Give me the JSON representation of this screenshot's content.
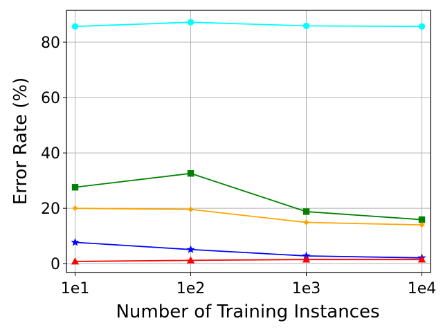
{
  "chart_data": {
    "type": "line",
    "x_scale": "log",
    "x": [
      10,
      100,
      1000,
      10000
    ],
    "x_tick_labels": [
      "1e1",
      "1e2",
      "1e3",
      "1e4"
    ],
    "y_ticks": [
      0,
      20,
      40,
      60,
      80
    ],
    "y_tick_labels": [
      "0",
      "20",
      "40",
      "60",
      "80"
    ],
    "xlabel": "Number of Training Instances",
    "ylabel": "Error Rate (%)",
    "ylim": [
      -3.2,
      91.5
    ],
    "grid": true,
    "legend": "none",
    "series": [
      {
        "color": "#00ffff",
        "marker": "circle",
        "values": [
          85.7,
          87.2,
          85.9,
          85.7
        ]
      },
      {
        "color": "#008000",
        "marker": "square",
        "values": [
          27.6,
          32.6,
          18.8,
          15.9
        ]
      },
      {
        "color": "#ffa500",
        "marker": "diamond",
        "values": [
          20.0,
          19.6,
          14.9,
          14.0
        ]
      },
      {
        "color": "#0000ff",
        "marker": "star",
        "values": [
          7.7,
          5.1,
          2.8,
          2.1
        ]
      },
      {
        "color": "#ff0000",
        "marker": "triangle",
        "values": [
          0.8,
          1.2,
          1.5,
          1.5
        ]
      }
    ]
  }
}
